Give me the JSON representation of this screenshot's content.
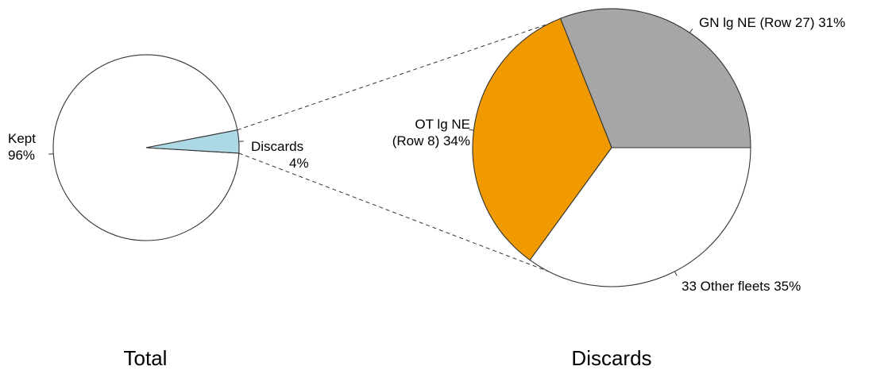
{
  "chart_data": [
    {
      "type": "pie",
      "title": "Total",
      "categories": [
        "Kept",
        "Discards"
      ],
      "values": [
        96,
        4
      ],
      "label_lines": [
        [
          "Kept",
          "96%"
        ],
        [
          "Discards",
          "4%"
        ]
      ],
      "colors": [
        "#ffffff",
        "#add8e6"
      ],
      "start_angle_deg": 11,
      "direction": "counterclockwise"
    },
    {
      "type": "pie",
      "title": "Discards",
      "categories": [
        "GN lg NE (Row 27)",
        "OT lg NE (Row 8)",
        "33 Other fleets"
      ],
      "values": [
        31,
        34,
        35
      ],
      "label_lines": [
        [
          "GN lg NE (Row 27) 31%"
        ],
        [
          "OT lg NE",
          "(Row 8) 34%"
        ],
        [
          "33 Other fleets 35%"
        ]
      ],
      "colors": [
        "#a6a6a6",
        "#f09a00",
        "#ffffff"
      ],
      "start_angle_deg": 0,
      "direction": "counterclockwise",
      "exploded_from": "Discards"
    }
  ]
}
